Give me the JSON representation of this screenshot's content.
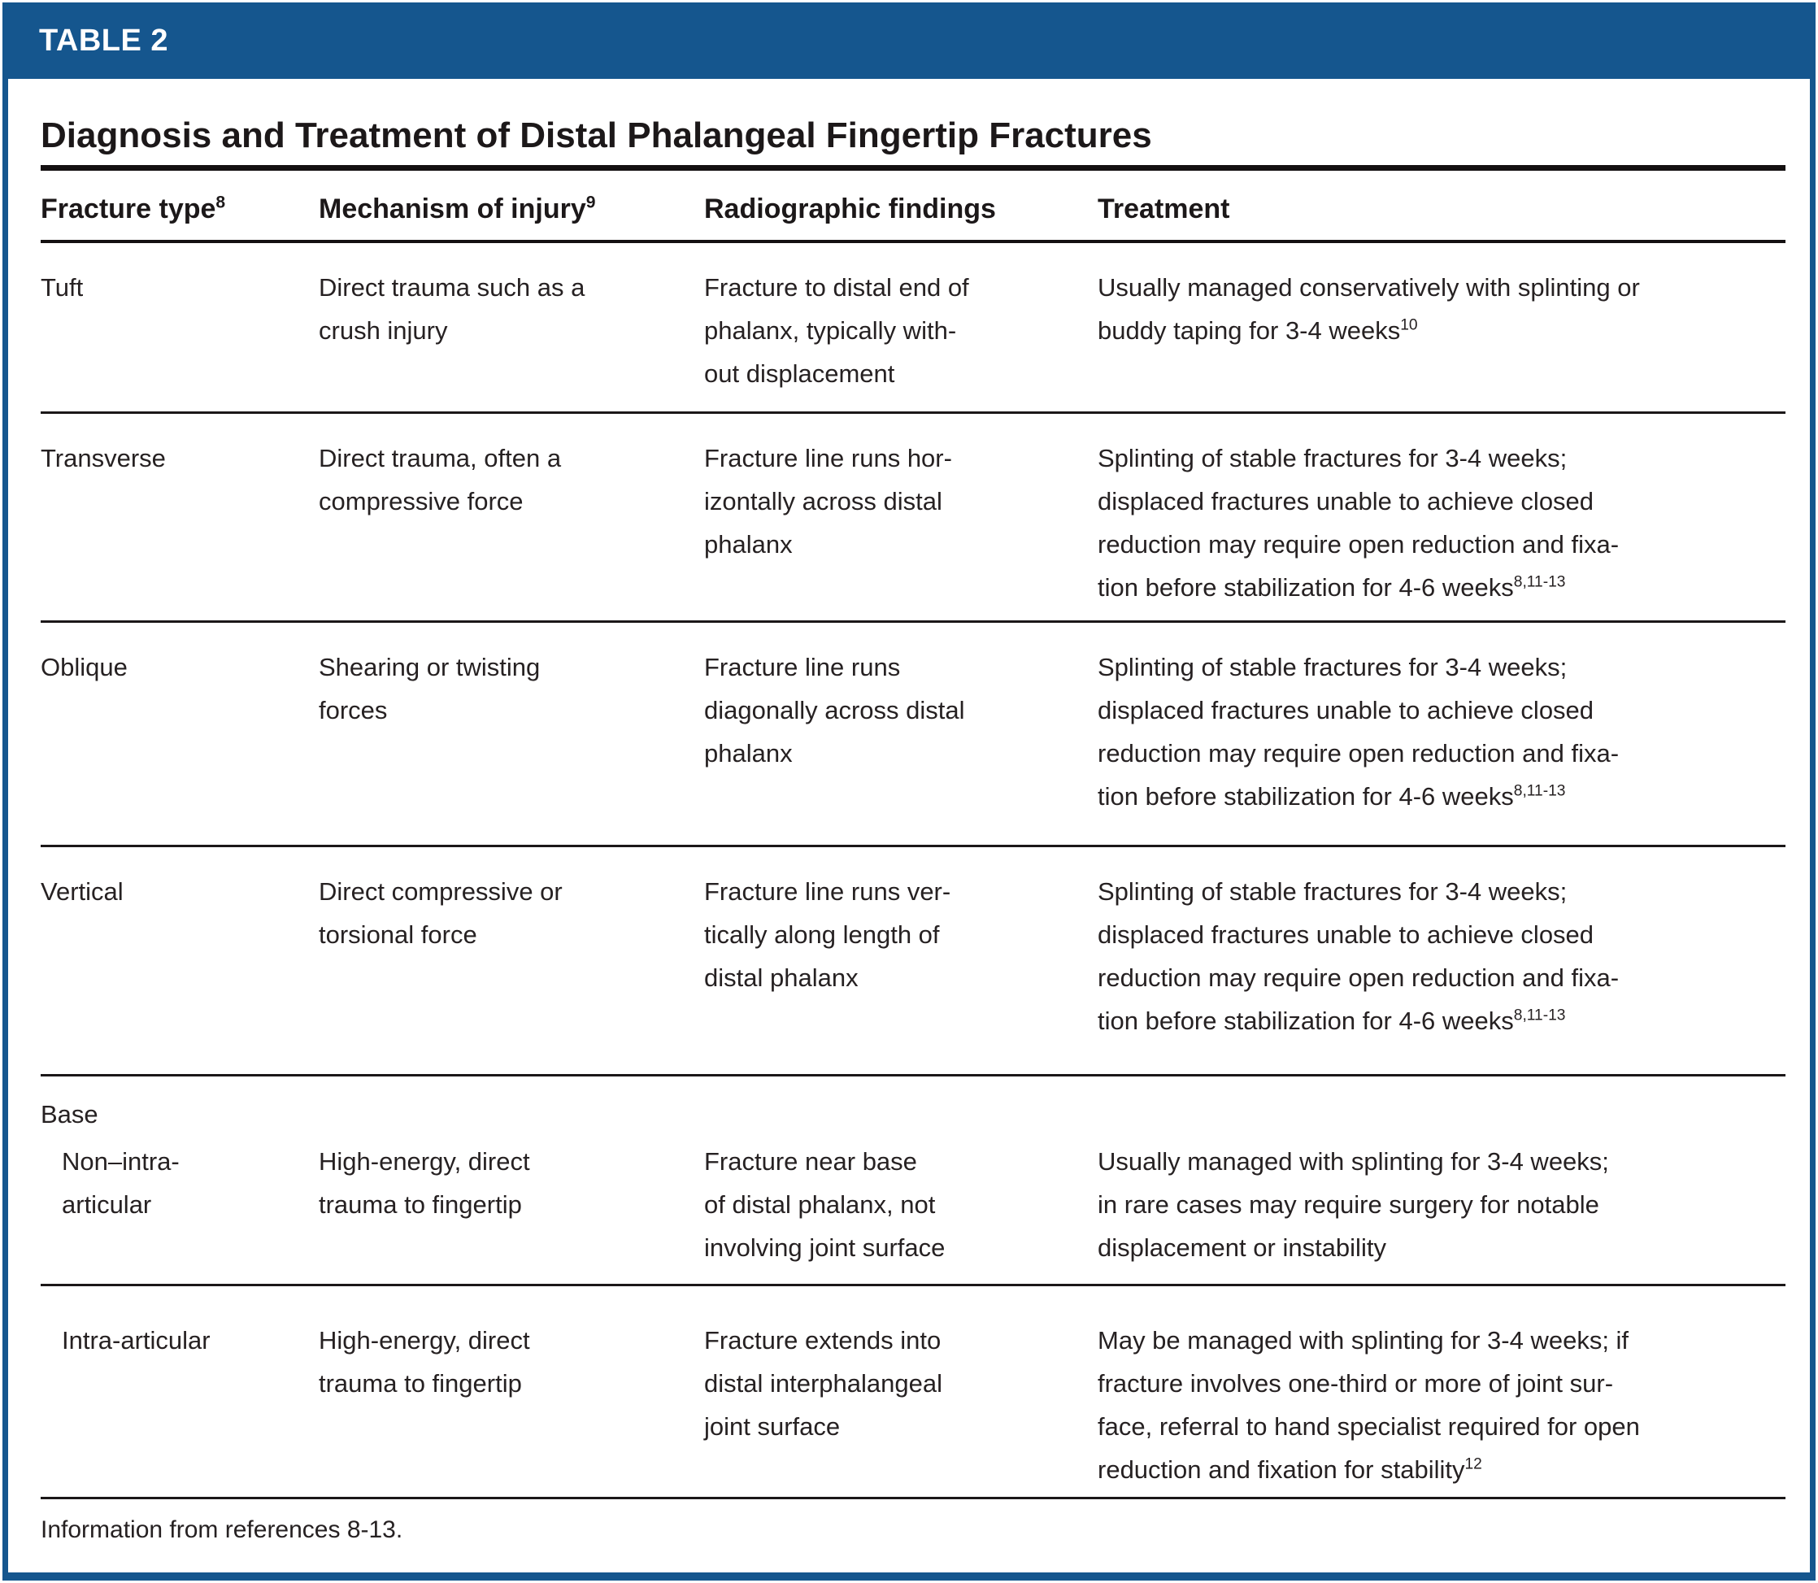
{
  "page": {
    "table_number": "TABLE 2",
    "title": "Diagnosis and Treatment of Distal Phalangeal Fingertip Fractures",
    "footnote": "Information from references 8-13."
  },
  "colors": {
    "brand_blue": "#15568E",
    "rule_black": "#141011",
    "text_dark": "#262122"
  },
  "table": {
    "columns": [
      {
        "label": "Fracture type",
        "sup": "8"
      },
      {
        "label": "Mechanism of injury",
        "sup": "9"
      },
      {
        "label": "Radiographic findings",
        "sup": ""
      },
      {
        "label": "Treatment",
        "sup": ""
      }
    ],
    "rows": [
      {
        "type": "Tuft",
        "mechanism": "Direct trauma such as a\ncrush injury",
        "findings": "Fracture to distal end of\nphalanx, typically with-\nout displacement",
        "treatment": "Usually managed conservatively with splinting or\nbuddy taping for 3-4 weeks",
        "treatment_sup": "10"
      },
      {
        "type": "Transverse",
        "mechanism": "Direct trauma, often a\ncompressive force",
        "findings": "Fracture line runs hor-\nizontally across distal\nphalanx",
        "treatment": "Splinting of stable fractures for 3-4 weeks;\ndisplaced fractures unable to achieve closed\nreduction may require open reduction and fixa-\ntion before stabilization for 4-6 weeks",
        "treatment_sup": "8,11-13"
      },
      {
        "type": "Oblique",
        "mechanism": "Shearing or twisting\nforces",
        "findings": "Fracture line runs\ndiagonally across distal\nphalanx",
        "treatment": "Splinting of stable fractures for 3-4 weeks;\ndisplaced fractures unable to achieve closed\nreduction may require open reduction and fixa-\ntion before stabilization for 4-6 weeks",
        "treatment_sup": "8,11-13"
      },
      {
        "type": "Vertical",
        "mechanism": "Direct compressive or\ntorsional force",
        "findings": "Fracture line runs ver-\ntically along length of\ndistal phalanx",
        "treatment": "Splinting of stable fractures for 3-4 weeks;\ndisplaced fractures unable to achieve closed\nreduction may require open reduction and fixa-\ntion before stabilization for 4-6 weeks",
        "treatment_sup": "8,11-13"
      }
    ],
    "section": {
      "label": "Base",
      "rows": [
        {
          "type": "Non–intra-\narticular",
          "mechanism": "High-energy, direct\ntrauma to fingertip",
          "findings": "Fracture near base\nof distal phalanx, not\ninvolving joint surface",
          "treatment": "Usually managed with splinting for 3-4 weeks;\nin rare cases may require surgery for notable\ndisplacement or instability",
          "treatment_sup": ""
        },
        {
          "type": "Intra-articular",
          "mechanism": "High-energy, direct\ntrauma to fingertip",
          "findings": "Fracture extends into\ndistal interphalangeal\njoint surface",
          "treatment": "May be managed with splinting for 3-4 weeks; if\nfracture involves one-third or more of joint sur-\nface, referral to hand specialist required for open\nreduction and fixation for stability",
          "treatment_sup": "12"
        }
      ]
    }
  }
}
